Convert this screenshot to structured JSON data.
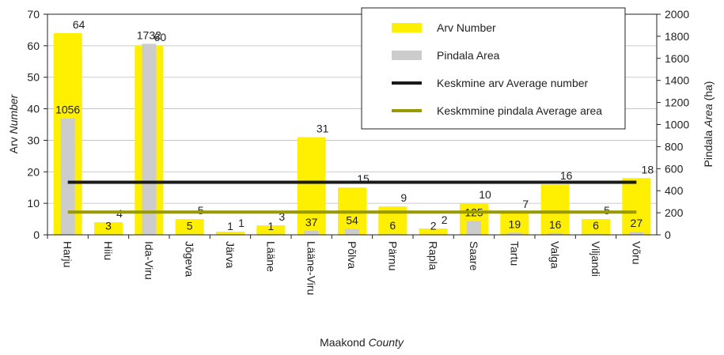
{
  "chart_data": {
    "type": "bar",
    "ylabel": [
      "Arv",
      "Number"
    ],
    "y2label": [
      "Pindala",
      "Area",
      "(ha)"
    ],
    "xlabel": [
      "Maakond",
      "County"
    ],
    "categories": [
      "Harju",
      "Hiiu",
      "Ida-Viru",
      "Jõgeva",
      "Järva",
      "Lääne",
      "Lääne-Viru",
      "Põlva",
      "Pärnu",
      "Rapla",
      "Saare",
      "Tartu",
      "Valga",
      "Viljandi",
      "Võru"
    ],
    "series": [
      {
        "name": "Arv Number",
        "color": "#ffef00",
        "values": [
          64,
          4,
          60,
          5,
          1,
          3,
          31,
          15,
          9,
          2,
          10,
          7,
          16,
          5,
          18
        ]
      },
      {
        "name": "Pindala Area",
        "color": "#cccccc",
        "axis": "y2",
        "values": [
          1056,
          3,
          1732,
          5,
          1,
          1,
          37,
          54,
          6,
          2,
          125,
          19,
          16,
          6,
          27
        ]
      }
    ],
    "averages": [
      {
        "name": "Keskmine arv Average number",
        "color": "#1a1a1a",
        "value": 16.7
      },
      {
        "name": "Keskmmine pindala Average area",
        "color": "#999900",
        "axis": "y2",
        "value": 206
      }
    ],
    "ylim": [
      0,
      70
    ],
    "yticks": [
      0,
      10,
      20,
      30,
      40,
      50,
      60,
      70
    ],
    "y2lim": [
      0,
      2000
    ],
    "y2ticks": [
      0,
      200,
      400,
      600,
      800,
      1000,
      1200,
      1400,
      1600,
      1800,
      2000
    ],
    "grid": true,
    "legend": "upper right"
  }
}
